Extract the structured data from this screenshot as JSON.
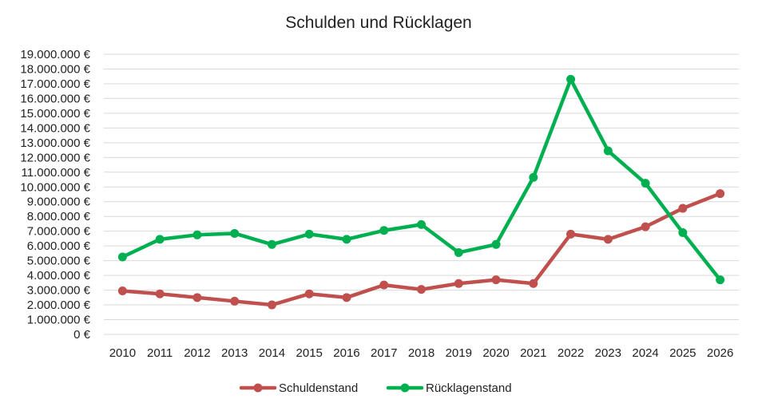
{
  "chart_data": {
    "type": "line",
    "title": "Schulden und Rücklagen",
    "xlabel": "",
    "ylabel": "",
    "categories": [
      "2010",
      "2011",
      "2012",
      "2013",
      "2014",
      "2015",
      "2016",
      "2017",
      "2018",
      "2019",
      "2020",
      "2021",
      "2022",
      "2023",
      "2024",
      "2025",
      "2026"
    ],
    "ylim": [
      0,
      19000000
    ],
    "ytick_values": [
      0,
      1000000,
      2000000,
      3000000,
      4000000,
      5000000,
      6000000,
      7000000,
      8000000,
      9000000,
      10000000,
      11000000,
      12000000,
      13000000,
      14000000,
      15000000,
      16000000,
      17000000,
      18000000,
      19000000
    ],
    "ytick_labels": [
      "0 €",
      "1.000.000 €",
      "2.000.000 €",
      "3.000.000 €",
      "4.000.000 €",
      "5.000.000 €",
      "6.000.000 €",
      "7.000.000 €",
      "8.000.000 €",
      "9.000.000 €",
      "10.000.000 €",
      "11.000.000 €",
      "12.000.000 €",
      "13.000.000 €",
      "14.000.000 €",
      "15.000.000 €",
      "16.000.000 €",
      "17.000.000 €",
      "18.000.000 €",
      "19.000.000 €"
    ],
    "grid": true,
    "legend_position": "bottom",
    "series": [
      {
        "name": "Schuldenstand",
        "color": "#c0504d",
        "values": [
          2950000,
          2750000,
          2500000,
          2250000,
          2000000,
          2750000,
          2500000,
          3350000,
          3050000,
          3450000,
          3700000,
          3450000,
          6800000,
          6450000,
          7300000,
          8550000,
          9550000
        ]
      },
      {
        "name": "Rücklagenstand",
        "color": "#00b050",
        "values": [
          5250000,
          6450000,
          6750000,
          6850000,
          6100000,
          6800000,
          6450000,
          7050000,
          7450000,
          5550000,
          6100000,
          10650000,
          17300000,
          12450000,
          10250000,
          6900000,
          3700000
        ]
      }
    ]
  }
}
